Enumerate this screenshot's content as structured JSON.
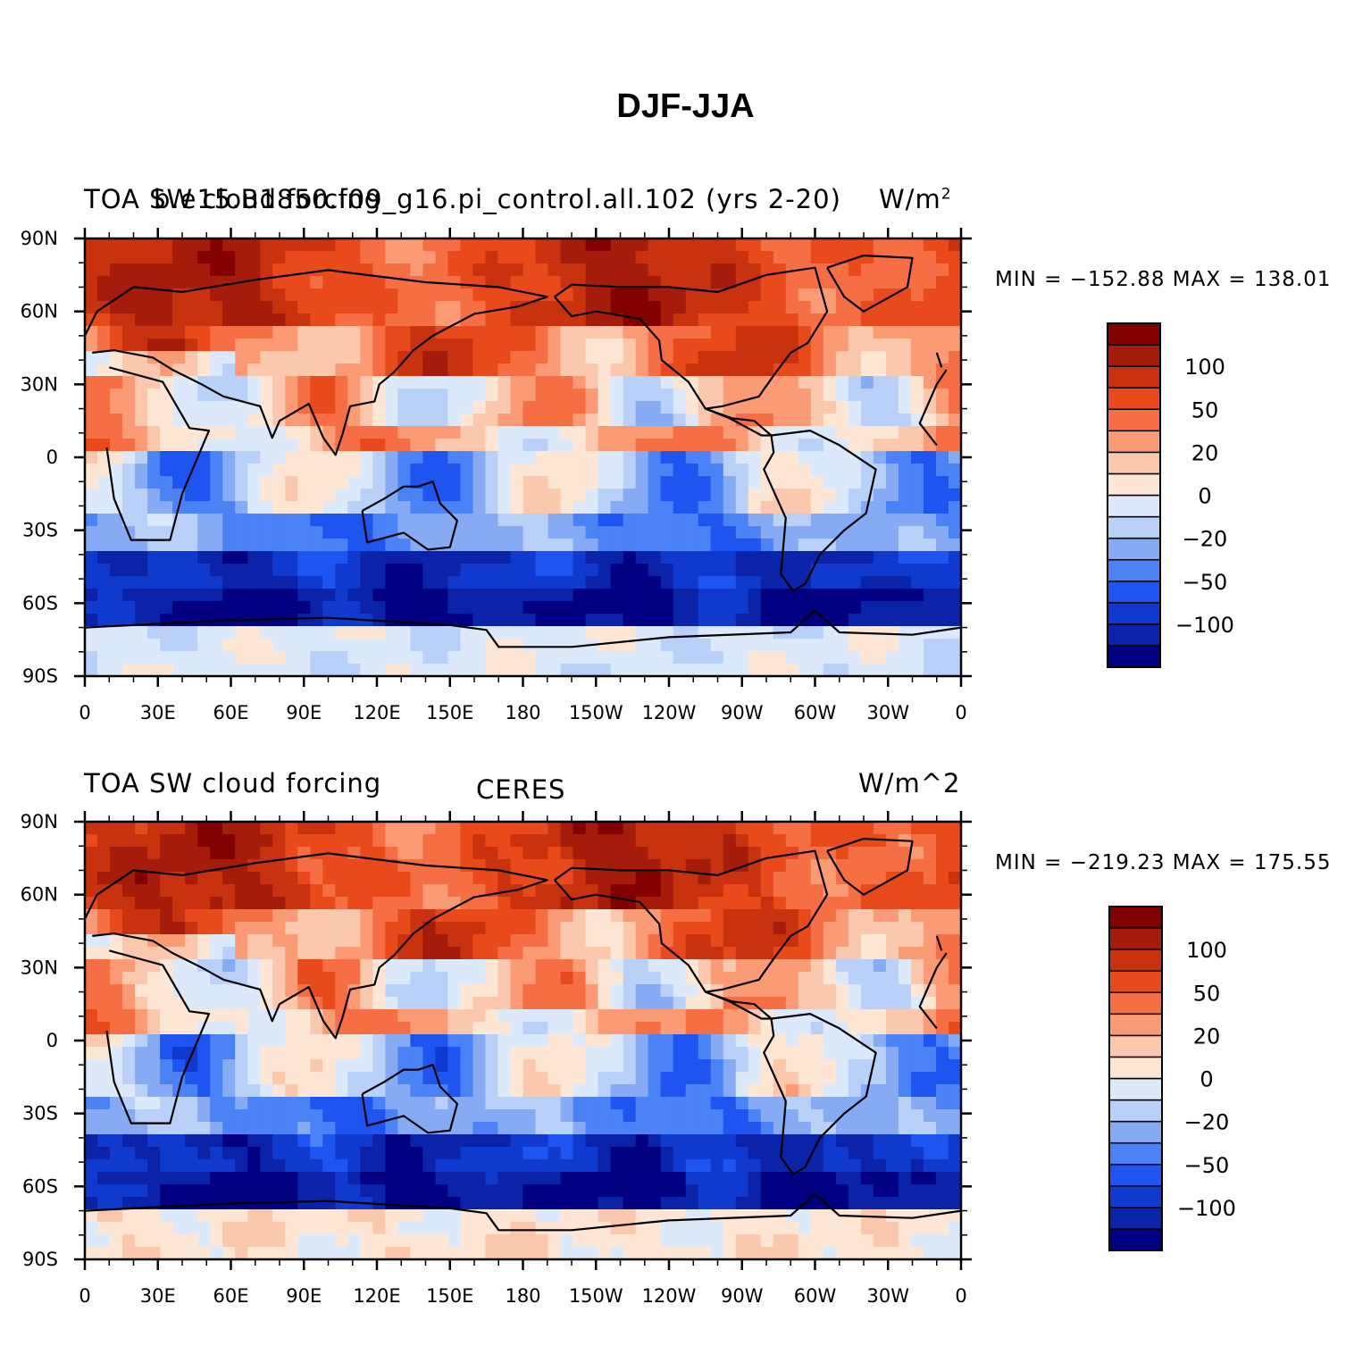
{
  "figure": {
    "title": "DJF-JJA",
    "panels": [
      {
        "left_label": "TOA SW cloud forcing",
        "center_label": "b.e15.B1850.f09_g16.pi_control.all.102 (yrs 2-20)",
        "units_label": "W/m",
        "units_superscript": "2",
        "min_max": "MIN = −152.88  MAX = 138.01"
      },
      {
        "left_label": "TOA SW cloud forcing",
        "center_label": "CERES",
        "units_label": "W/m^2",
        "units_superscript": "",
        "min_max": "MIN = −219.23  MAX = 175.55"
      }
    ]
  },
  "map_axes": {
    "lat_labels": [
      "90N",
      "60N",
      "30N",
      "0",
      "30S",
      "60S",
      "90S"
    ],
    "lon_labels": [
      "0",
      "30E",
      "60E",
      "90E",
      "120E",
      "150E",
      "180",
      "150W",
      "120W",
      "90W",
      "60W",
      "30W",
      "0"
    ]
  },
  "colorbar": {
    "colors": [
      "#000080",
      "#0a23a8",
      "#0f3acd",
      "#1e55f0",
      "#4b82f5",
      "#87aaf5",
      "#b9d0f8",
      "#dce9fa",
      "#fde6d4",
      "#fcc8ad",
      "#fb9b76",
      "#f66e44",
      "#e84a1c",
      "#c8320f",
      "#a51c0a",
      "#820000"
    ],
    "tick_labels": [
      "100",
      "50",
      "20",
      "0",
      "−20",
      "−50",
      "−100"
    ]
  },
  "chart_data": {
    "type": "heatmap",
    "title": "DJF-JJA",
    "variable": "TOA SW cloud forcing",
    "units": "W/m^2",
    "x_axis": "longitude",
    "y_axis": "latitude",
    "xlim": [
      0,
      360
    ],
    "ylim": [
      -90,
      90
    ],
    "contour_levels": [
      -100,
      -50,
      -20,
      0,
      20,
      50,
      100
    ],
    "panels": [
      {
        "source": "b.e15.B1850.f09_g16.pi_control.all.102 (yrs 2-20)",
        "min": -152.88,
        "max": 138.01
      },
      {
        "source": "CERES",
        "min": -219.23,
        "max": 175.55
      }
    ]
  }
}
